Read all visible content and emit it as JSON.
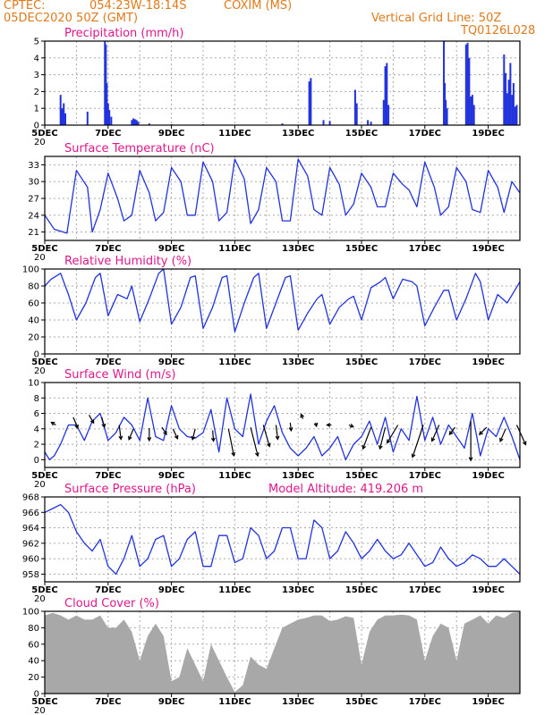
{
  "header": {
    "source": "CPTEC:",
    "coords": "054:23W-18:14S",
    "location": "COXIM (MS)",
    "run": "05DEC2020 50Z (GMT)",
    "grid_note": "Vertical Grid Line: 50Z",
    "code": "TQ0126L028"
  },
  "colors": {
    "header": "#e07a1a",
    "title": "#e0188a",
    "line": "#2233dd",
    "cloud": "#a8a8a8"
  },
  "date_ticks": [
    "5DEC",
    "7DEC",
    "9DEC",
    "11DEC",
    "13DEC",
    "15DEC",
    "17DEC",
    "19DEC"
  ],
  "cut_label": "20",
  "chart_data": [
    {
      "type": "bar",
      "title": "Precipitation (mm/h)",
      "ylim": [
        0,
        5
      ],
      "yticks": [
        0,
        1,
        2,
        3,
        4,
        5
      ],
      "x_unit": "day",
      "x_range": [
        5,
        20
      ],
      "bars": [
        [
          5.5,
          1.8
        ],
        [
          5.55,
          1.0
        ],
        [
          5.6,
          1.3
        ],
        [
          5.65,
          0.7
        ],
        [
          6.35,
          0.8
        ],
        [
          6.9,
          5.0
        ],
        [
          6.93,
          4.8
        ],
        [
          6.96,
          2.5
        ],
        [
          7.0,
          1.3
        ],
        [
          7.04,
          0.9
        ],
        [
          7.1,
          0.5
        ],
        [
          7.75,
          0.3
        ],
        [
          7.8,
          0.4
        ],
        [
          7.85,
          0.35
        ],
        [
          7.9,
          0.3
        ],
        [
          7.95,
          0.2
        ],
        [
          8.3,
          0.1
        ],
        [
          9.0,
          0.05
        ],
        [
          10.0,
          0.05
        ],
        [
          12.5,
          0.1
        ],
        [
          13.35,
          2.6
        ],
        [
          13.4,
          2.8
        ],
        [
          13.8,
          0.3
        ],
        [
          14.0,
          0.25
        ],
        [
          14.8,
          2.1
        ],
        [
          14.85,
          1.3
        ],
        [
          15.2,
          0.3
        ],
        [
          15.3,
          0.2
        ],
        [
          15.7,
          1.5
        ],
        [
          15.75,
          3.5
        ],
        [
          15.8,
          3.7
        ],
        [
          15.85,
          1.2
        ],
        [
          17.6,
          5.0
        ],
        [
          17.63,
          2.5
        ],
        [
          17.66,
          1.5
        ],
        [
          17.7,
          1.0
        ],
        [
          18.3,
          4.8
        ],
        [
          18.35,
          4.9
        ],
        [
          18.4,
          4.0
        ],
        [
          18.45,
          1.7
        ],
        [
          18.5,
          1.8
        ],
        [
          18.55,
          1.2
        ],
        [
          19.5,
          4.2
        ],
        [
          19.55,
          3.1
        ],
        [
          19.6,
          1.9
        ],
        [
          19.65,
          2.7
        ],
        [
          19.7,
          3.7
        ],
        [
          19.75,
          1.8
        ],
        [
          19.8,
          2.5
        ],
        [
          19.85,
          1.1
        ],
        [
          19.9,
          1.2
        ]
      ]
    },
    {
      "type": "line",
      "title": "Surface Temperature (nC)",
      "ylim": [
        19.5,
        34.5
      ],
      "yticks": [
        21,
        24,
        27,
        30,
        33
      ],
      "x_unit": "day",
      "x_range": [
        5,
        20
      ],
      "x": [
        5.0,
        5.3,
        5.7,
        6.0,
        6.35,
        6.5,
        6.75,
        7.0,
        7.3,
        7.5,
        7.75,
        8.0,
        8.3,
        8.5,
        8.75,
        9.0,
        9.3,
        9.5,
        9.75,
        10.0,
        10.3,
        10.5,
        10.75,
        11.0,
        11.3,
        11.5,
        11.75,
        12.0,
        12.3,
        12.5,
        12.75,
        13.0,
        13.3,
        13.5,
        13.75,
        14.0,
        14.3,
        14.5,
        14.75,
        15.0,
        15.3,
        15.5,
        15.75,
        16.0,
        16.3,
        16.5,
        16.75,
        17.0,
        17.3,
        17.5,
        17.75,
        18.0,
        18.3,
        18.5,
        18.75,
        19.0,
        19.3,
        19.5,
        19.75,
        20.0
      ],
      "series": [
        {
          "values": [
            24.0,
            21.5,
            20.8,
            32.0,
            29.0,
            21.0,
            25.0,
            31.5,
            27.0,
            23.0,
            24.0,
            32.0,
            28.0,
            23.0,
            24.5,
            32.5,
            30.0,
            24.0,
            24.0,
            33.5,
            30.0,
            23.0,
            24.5,
            34.0,
            30.5,
            22.5,
            25.0,
            32.5,
            30.0,
            23.0,
            23.0,
            34.0,
            31.0,
            25.0,
            24.0,
            32.5,
            29.5,
            24.0,
            26.0,
            31.5,
            29.0,
            25.5,
            25.5,
            31.5,
            29.5,
            28.5,
            25.5,
            33.5,
            29.0,
            24.0,
            25.5,
            32.5,
            30.0,
            25.0,
            24.5,
            32.0,
            29.0,
            24.5,
            30.0,
            28.0
          ]
        }
      ]
    },
    {
      "type": "line",
      "title": "Relative Humidity (%)",
      "ylim": [
        0,
        100
      ],
      "yticks": [
        0,
        20,
        40,
        60,
        80,
        100
      ],
      "x_unit": "day",
      "x_range": [
        5,
        20
      ],
      "x": [
        5.0,
        5.2,
        5.5,
        5.75,
        6.0,
        6.3,
        6.6,
        6.75,
        7.0,
        7.3,
        7.6,
        7.75,
        8.0,
        8.3,
        8.6,
        8.75,
        9.0,
        9.3,
        9.6,
        9.75,
        10.0,
        10.3,
        10.6,
        10.75,
        11.0,
        11.3,
        11.6,
        11.75,
        12.0,
        12.3,
        12.6,
        12.75,
        13.0,
        13.3,
        13.6,
        13.75,
        14.0,
        14.3,
        14.6,
        14.75,
        15.0,
        15.3,
        15.6,
        15.75,
        16.0,
        16.3,
        16.6,
        16.75,
        17.0,
        17.3,
        17.6,
        17.75,
        18.0,
        18.3,
        18.6,
        18.75,
        19.0,
        19.3,
        19.6,
        20.0
      ],
      "series": [
        {
          "values": [
            80.0,
            88.0,
            95.0,
            70.0,
            40.0,
            60.0,
            90.0,
            95.0,
            45.0,
            70.0,
            65.0,
            80.0,
            38.0,
            65.0,
            95.0,
            100.0,
            35.0,
            55.0,
            90.0,
            92.0,
            30.0,
            55.0,
            90.0,
            92.0,
            26.0,
            60.0,
            90.0,
            95.0,
            30.0,
            60.0,
            90.0,
            92.0,
            28.0,
            48.0,
            65.0,
            70.0,
            35.0,
            55.0,
            65.0,
            68.0,
            40.0,
            78.0,
            85.0,
            90.0,
            65.0,
            88.0,
            85.0,
            80.0,
            33.0,
            55.0,
            75.0,
            75.0,
            40.0,
            65.0,
            95.0,
            85.0,
            40.0,
            70.0,
            60.0,
            85.0
          ]
        }
      ]
    },
    {
      "type": "line",
      "title": "Surface Wind (m/s)",
      "ylim": [
        -1,
        10
      ],
      "yticks": [
        0,
        2,
        4,
        6,
        8,
        10
      ],
      "x_unit": "day",
      "x_range": [
        5,
        20
      ],
      "x": [
        5.0,
        5.15,
        5.3,
        5.5,
        5.75,
        6.0,
        6.25,
        6.5,
        6.75,
        7.0,
        7.25,
        7.5,
        7.75,
        8.0,
        8.25,
        8.5,
        8.75,
        9.0,
        9.25,
        9.5,
        9.75,
        10.0,
        10.25,
        10.5,
        10.75,
        11.0,
        11.25,
        11.5,
        11.75,
        12.0,
        12.25,
        12.5,
        12.75,
        13.0,
        13.25,
        13.5,
        13.75,
        14.0,
        14.25,
        14.5,
        14.75,
        15.0,
        15.25,
        15.5,
        15.75,
        16.0,
        16.25,
        16.5,
        16.75,
        17.0,
        17.25,
        17.5,
        17.75,
        18.0,
        18.25,
        18.5,
        18.75,
        19.0,
        19.25,
        19.5,
        19.75,
        20.0
      ],
      "series": [
        {
          "values": [
            1.0,
            0.0,
            0.5,
            2.0,
            4.5,
            4.5,
            2.5,
            5.0,
            6.0,
            2.5,
            3.5,
            5.5,
            4.5,
            2.5,
            8.0,
            3.0,
            2.5,
            7.0,
            4.0,
            3.0,
            2.8,
            3.5,
            6.5,
            1.0,
            8.0,
            4.0,
            3.0,
            8.5,
            2.0,
            5.0,
            7.0,
            3.5,
            1.5,
            0.5,
            1.5,
            3.0,
            0.5,
            1.5,
            3.0,
            0.0,
            2.0,
            3.0,
            5.0,
            2.0,
            5.5,
            1.0,
            4.0,
            2.5,
            8.2,
            2.5,
            5.5,
            2.0,
            4.5,
            3.0,
            1.5,
            6.0,
            0.5,
            4.0,
            3.0,
            5.5,
            3.0,
            0.0
          ]
        }
      ],
      "vectors": [
        [
          5.35,
          4.5,
          -0.25,
          -0.15
        ],
        [
          5.9,
          5.5,
          0.25,
          0.6
        ],
        [
          6.4,
          5.8,
          0.25,
          0.45
        ],
        [
          6.8,
          5.5,
          0.15,
          0.55
        ],
        [
          7.35,
          4.5,
          0.1,
          0.8
        ],
        [
          7.8,
          4.0,
          -0.25,
          0.6
        ],
        [
          8.3,
          4.1,
          0.0,
          0.7
        ],
        [
          8.7,
          4.2,
          0.25,
          0.4
        ],
        [
          9.05,
          4.0,
          0.25,
          0.55
        ],
        [
          9.75,
          4.0,
          -0.15,
          0.6
        ],
        [
          10.3,
          3.8,
          0.05,
          0.6
        ],
        [
          10.8,
          4.0,
          0.3,
          1.5
        ],
        [
          11.5,
          4.2,
          0.4,
          1.6
        ],
        [
          11.9,
          4.5,
          0.35,
          1.2
        ],
        [
          12.3,
          4.5,
          0.1,
          0.8
        ],
        [
          12.75,
          4.8,
          0.05,
          0.45
        ],
        [
          13.15,
          5.3,
          -0.1,
          -0.25
        ],
        [
          13.55,
          4.8,
          0.05,
          0.2
        ],
        [
          14.05,
          4.5,
          -0.25,
          0.0
        ],
        [
          14.6,
          4.5,
          0.25,
          0.1
        ],
        [
          15.3,
          4.2,
          -0.45,
          1.2
        ],
        [
          15.75,
          4.2,
          -0.3,
          1.2
        ],
        [
          16.15,
          4.5,
          -0.6,
          1.0
        ],
        [
          16.95,
          4.5,
          -0.6,
          1.8
        ],
        [
          17.45,
          4.5,
          -0.4,
          0.9
        ],
        [
          17.95,
          4.2,
          -0.3,
          0.4
        ],
        [
          18.45,
          5.0,
          0.0,
          2.2
        ],
        [
          18.95,
          4.2,
          -0.4,
          0.4
        ],
        [
          19.55,
          4.0,
          -0.3,
          0.7
        ],
        [
          19.9,
          4.5,
          0.5,
          1.1
        ]
      ]
    },
    {
      "type": "line",
      "title": "Surface Pressure (hPa)",
      "annotation": "Model Altitude: 419.206 m",
      "ylim": [
        957,
        968
      ],
      "yticks": [
        958,
        960,
        962,
        964,
        966,
        968
      ],
      "x_unit": "day",
      "x_range": [
        5,
        20
      ],
      "x": [
        5.0,
        5.25,
        5.5,
        5.75,
        6.0,
        6.25,
        6.5,
        6.75,
        7.0,
        7.25,
        7.5,
        7.75,
        8.0,
        8.25,
        8.5,
        8.75,
        9.0,
        9.25,
        9.5,
        9.75,
        10.0,
        10.25,
        10.5,
        10.75,
        11.0,
        11.25,
        11.5,
        11.75,
        12.0,
        12.25,
        12.5,
        12.75,
        13.0,
        13.25,
        13.5,
        13.75,
        14.0,
        14.25,
        14.5,
        14.75,
        15.0,
        15.25,
        15.5,
        15.75,
        16.0,
        16.25,
        16.5,
        16.75,
        17.0,
        17.25,
        17.5,
        17.75,
        18.0,
        18.25,
        18.5,
        18.75,
        19.0,
        19.25,
        19.5,
        19.75,
        20.0
      ],
      "series": [
        {
          "values": [
            966.0,
            966.5,
            967.0,
            966.0,
            963.5,
            962.0,
            961.0,
            962.5,
            959.0,
            958.0,
            960.0,
            963.0,
            959.0,
            960.0,
            962.5,
            963.0,
            959.0,
            960.0,
            962.5,
            963.5,
            959.0,
            959.0,
            963.0,
            963.0,
            959.5,
            960.0,
            964.0,
            963.0,
            960.0,
            961.0,
            964.0,
            964.0,
            960.0,
            960.0,
            965.0,
            964.0,
            960.0,
            961.0,
            963.5,
            962.0,
            960.0,
            961.0,
            962.5,
            961.0,
            960.0,
            960.5,
            962.0,
            960.5,
            959.0,
            959.5,
            961.5,
            960.0,
            959.0,
            959.5,
            960.5,
            960.0,
            959.0,
            959.0,
            960.0,
            959.0,
            958.0
          ]
        }
      ]
    },
    {
      "type": "area",
      "title": "Cloud Cover (%)",
      "ylim": [
        0,
        100
      ],
      "yticks": [
        0,
        20,
        40,
        60,
        80,
        100
      ],
      "x_unit": "day",
      "x_range": [
        5,
        20
      ],
      "x": [
        5.0,
        5.25,
        5.5,
        5.75,
        6.0,
        6.25,
        6.5,
        6.75,
        7.0,
        7.25,
        7.5,
        7.75,
        8.0,
        8.25,
        8.5,
        8.75,
        9.0,
        9.25,
        9.5,
        9.75,
        10.0,
        10.25,
        10.5,
        10.75,
        11.0,
        11.25,
        11.5,
        11.75,
        12.0,
        12.25,
        12.5,
        12.75,
        13.0,
        13.25,
        13.5,
        13.75,
        14.0,
        14.25,
        14.5,
        14.75,
        15.0,
        15.25,
        15.5,
        15.75,
        16.0,
        16.25,
        16.5,
        16.75,
        17.0,
        17.25,
        17.5,
        17.75,
        18.0,
        18.25,
        18.5,
        18.75,
        19.0,
        19.25,
        19.5,
        19.75,
        20.0
      ],
      "series": [
        {
          "values": [
            95.0,
            98.0,
            95.0,
            90.0,
            95.0,
            90.0,
            90.0,
            95.0,
            80.0,
            80.0,
            90.0,
            75.0,
            40.0,
            70.0,
            85.0,
            70.0,
            15.0,
            20.0,
            55.0,
            35.0,
            15.0,
            60.0,
            40.0,
            20.0,
            2.0,
            10.0,
            45.0,
            35.0,
            30.0,
            55.0,
            80.0,
            85.0,
            90.0,
            92.0,
            95.0,
            95.0,
            88.0,
            90.0,
            94.0,
            92.0,
            35.0,
            75.0,
            90.0,
            95.0,
            95.0,
            96.0,
            95.0,
            90.0,
            40.0,
            70.0,
            85.0,
            80.0,
            40.0,
            85.0,
            90.0,
            95.0,
            85.0,
            95.0,
            92.0,
            98.0,
            99.0
          ]
        }
      ]
    }
  ]
}
